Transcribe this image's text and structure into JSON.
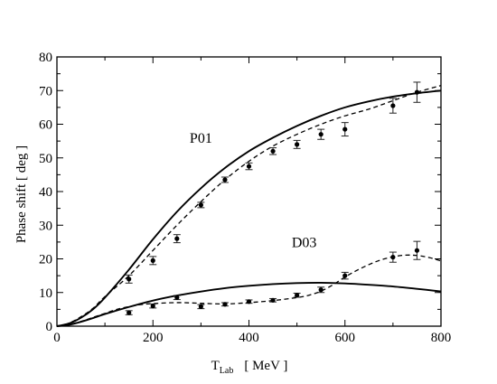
{
  "chart_data": {
    "type": "line",
    "xlabel": {
      "main": "T",
      "sub": "Lab",
      "unit": "[ MeV ]"
    },
    "ylabel": "Phase shift   [ deg ]",
    "xlim": [
      0,
      800
    ],
    "ylim": [
      0,
      80
    ],
    "xticks": [
      0,
      200,
      400,
      600,
      800
    ],
    "yticks": [
      0,
      10,
      20,
      30,
      40,
      50,
      60,
      70,
      80
    ],
    "grid": false,
    "annotations": [
      {
        "text": "P01",
        "x": 300,
        "y": 54.5
      },
      {
        "text": "D03",
        "x": 515,
        "y": 23.5
      }
    ],
    "series": [
      {
        "style": "solid",
        "x": [
          0,
          25,
          50,
          75,
          100,
          150,
          200,
          250,
          300,
          350,
          400,
          450,
          500,
          550,
          600,
          650,
          700,
          750,
          800
        ],
        "y": [
          0,
          0.8,
          2.5,
          5.0,
          8.5,
          16.8,
          25.8,
          34.0,
          41.0,
          47.0,
          52.0,
          56.0,
          59.5,
          62.5,
          65.0,
          66.8,
          68.2,
          69.2,
          70.0
        ]
      },
      {
        "style": "dashed",
        "x": [
          0,
          25,
          50,
          75,
          100,
          150,
          200,
          250,
          300,
          350,
          400,
          450,
          500,
          550,
          600,
          650,
          700,
          750,
          800
        ],
        "y": [
          0,
          0.9,
          2.8,
          5.3,
          8.8,
          15.0,
          22.5,
          30.0,
          37.0,
          43.5,
          49.0,
          53.5,
          57.0,
          60.0,
          62.5,
          64.5,
          67.0,
          69.5,
          71.5
        ]
      },
      {
        "style": "solid",
        "x": [
          0,
          25,
          50,
          75,
          100,
          150,
          200,
          250,
          300,
          350,
          400,
          450,
          500,
          550,
          600,
          650,
          700,
          750,
          800
        ],
        "y": [
          0,
          0.4,
          1.3,
          2.4,
          3.6,
          5.7,
          7.6,
          9.1,
          10.3,
          11.3,
          12.0,
          12.5,
          12.8,
          12.9,
          12.7,
          12.3,
          11.8,
          11.1,
          10.3
        ]
      },
      {
        "style": "dashed",
        "x": [
          0,
          25,
          50,
          75,
          100,
          125,
          150,
          175,
          200,
          250,
          300,
          350,
          400,
          450,
          500,
          525,
          550,
          575,
          600,
          625,
          650,
          675,
          700,
          725,
          750,
          775,
          800
        ],
        "y": [
          0,
          0.5,
          1.4,
          2.6,
          3.8,
          5.0,
          5.8,
          6.4,
          6.7,
          7.0,
          6.8,
          6.6,
          7.0,
          7.6,
          8.5,
          9.2,
          10.4,
          12.3,
          14.6,
          16.6,
          18.3,
          19.7,
          20.6,
          21.1,
          21.0,
          20.4,
          19.4
        ]
      }
    ],
    "points": [
      {
        "x": 150,
        "y": 14.0,
        "err": 1.2
      },
      {
        "x": 200,
        "y": 19.5,
        "err": 1.2
      },
      {
        "x": 250,
        "y": 26.0,
        "err": 1.2
      },
      {
        "x": 300,
        "y": 36.0,
        "err": 0.8
      },
      {
        "x": 350,
        "y": 43.5,
        "err": 0.8
      },
      {
        "x": 400,
        "y": 47.5,
        "err": 1.0
      },
      {
        "x": 450,
        "y": 52.0,
        "err": 1.0
      },
      {
        "x": 500,
        "y": 54.0,
        "err": 1.2
      },
      {
        "x": 550,
        "y": 57.0,
        "err": 1.5
      },
      {
        "x": 600,
        "y": 58.5,
        "err": 2.0
      },
      {
        "x": 700,
        "y": 65.5,
        "err": 2.2
      },
      {
        "x": 750,
        "y": 69.5,
        "err": 3.0
      },
      {
        "x": 150,
        "y": 4.0,
        "err": 0.6
      },
      {
        "x": 200,
        "y": 6.0,
        "err": 0.6
      },
      {
        "x": 250,
        "y": 8.5,
        "err": 0.6
      },
      {
        "x": 300,
        "y": 5.8,
        "err": 0.6
      },
      {
        "x": 350,
        "y": 6.5,
        "err": 0.5
      },
      {
        "x": 400,
        "y": 7.3,
        "err": 0.5
      },
      {
        "x": 450,
        "y": 7.7,
        "err": 0.5
      },
      {
        "x": 500,
        "y": 9.2,
        "err": 0.6
      },
      {
        "x": 550,
        "y": 10.8,
        "err": 0.8
      },
      {
        "x": 600,
        "y": 15.0,
        "err": 1.0
      },
      {
        "x": 700,
        "y": 20.5,
        "err": 1.5
      },
      {
        "x": 750,
        "y": 22.5,
        "err": 2.7
      }
    ]
  }
}
